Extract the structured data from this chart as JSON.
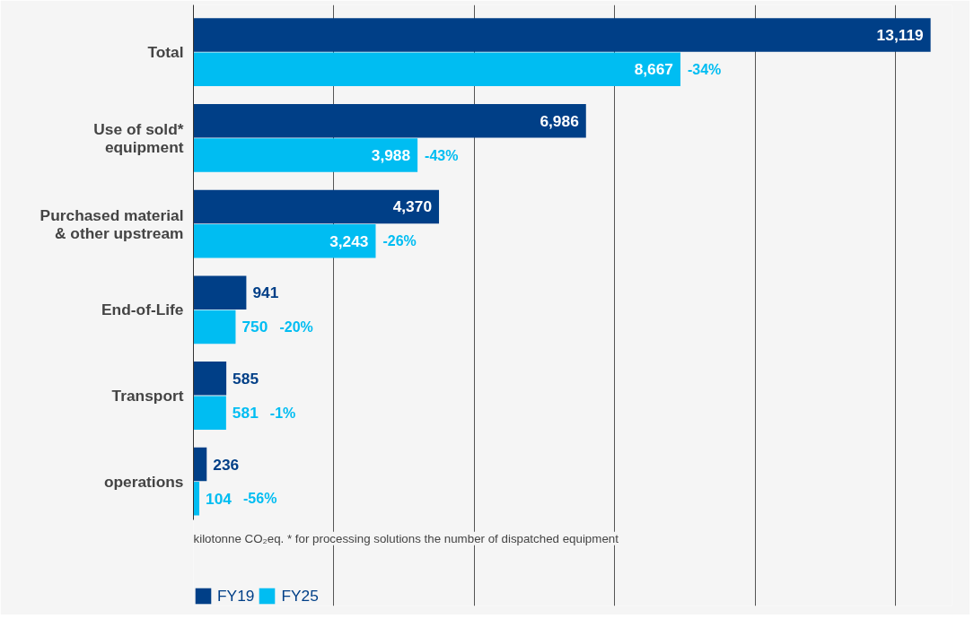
{
  "chart_data": {
    "type": "bar",
    "orientation": "horizontal",
    "categories": [
      "Total",
      "Use of sold*\nequipment",
      "Purchased material\n& other upstream",
      "End-of-Life",
      "Transport",
      "operations"
    ],
    "series": [
      {
        "name": "FY19",
        "color": "#003f87",
        "values": [
          13119,
          6986,
          4370,
          941,
          585,
          236
        ],
        "value_labels": [
          "13,119",
          "6,986",
          "4,370",
          "941",
          "585",
          "236"
        ]
      },
      {
        "name": "FY25",
        "color": "#00bdf2",
        "values": [
          8667,
          3988,
          3243,
          750,
          581,
          104
        ],
        "value_labels": [
          "8,667",
          "3,988",
          "3,243",
          "750",
          "581",
          "104"
        ]
      }
    ],
    "xlim": [
      0,
      13500
    ],
    "xticks": [
      {
        "value": 0,
        "label": null
      },
      {
        "value": 2500,
        "label": null
      },
      {
        "value": 5000,
        "label": null
      },
      {
        "value": 7500,
        "label": null
      },
      {
        "value": 10000,
        "label": null
      },
      {
        "value": 12500,
        "label": null
      }
    ],
    "tick_labels": "y",
    "grid": "x",
    "legend": "bottom",
    "annotations": [
      "-34%",
      "-43%",
      "-26%",
      "-20%",
      "-1%",
      "-56%",
      "kilotonne CO₂eq. * for processing solutions the number of dispatched equipment"
    ]
  }
}
